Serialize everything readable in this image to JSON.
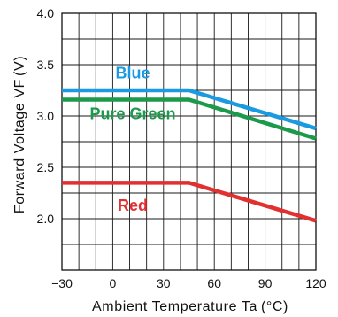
{
  "chart_data": {
    "type": "line",
    "xlabel": "Ambient Temperature Ta",
    "xunit": "(°C)",
    "ylabel": "Forward Voltage VF",
    "yunit": "(V)",
    "xlim": [
      -30,
      120
    ],
    "ylim": [
      1.5,
      4.0
    ],
    "x_ticks": [
      "−30",
      "0",
      "30",
      "60",
      "90",
      "120"
    ],
    "y_ticks": [
      "4.0",
      "3.5",
      "3.0",
      "2.5",
      "2.0"
    ],
    "grid": true,
    "series": [
      {
        "name": "Blue",
        "color": "#1a9ae0",
        "x": [
          -30,
          45,
          120
        ],
        "y": [
          3.25,
          3.25,
          2.88
        ]
      },
      {
        "name": "Pure Green",
        "color": "#1a9a4a",
        "x": [
          -30,
          45,
          120
        ],
        "y": [
          3.16,
          3.16,
          2.78
        ]
      },
      {
        "name": "Red",
        "color": "#e03030",
        "x": [
          -30,
          45,
          120
        ],
        "y": [
          2.35,
          2.35,
          1.98
        ]
      }
    ]
  }
}
